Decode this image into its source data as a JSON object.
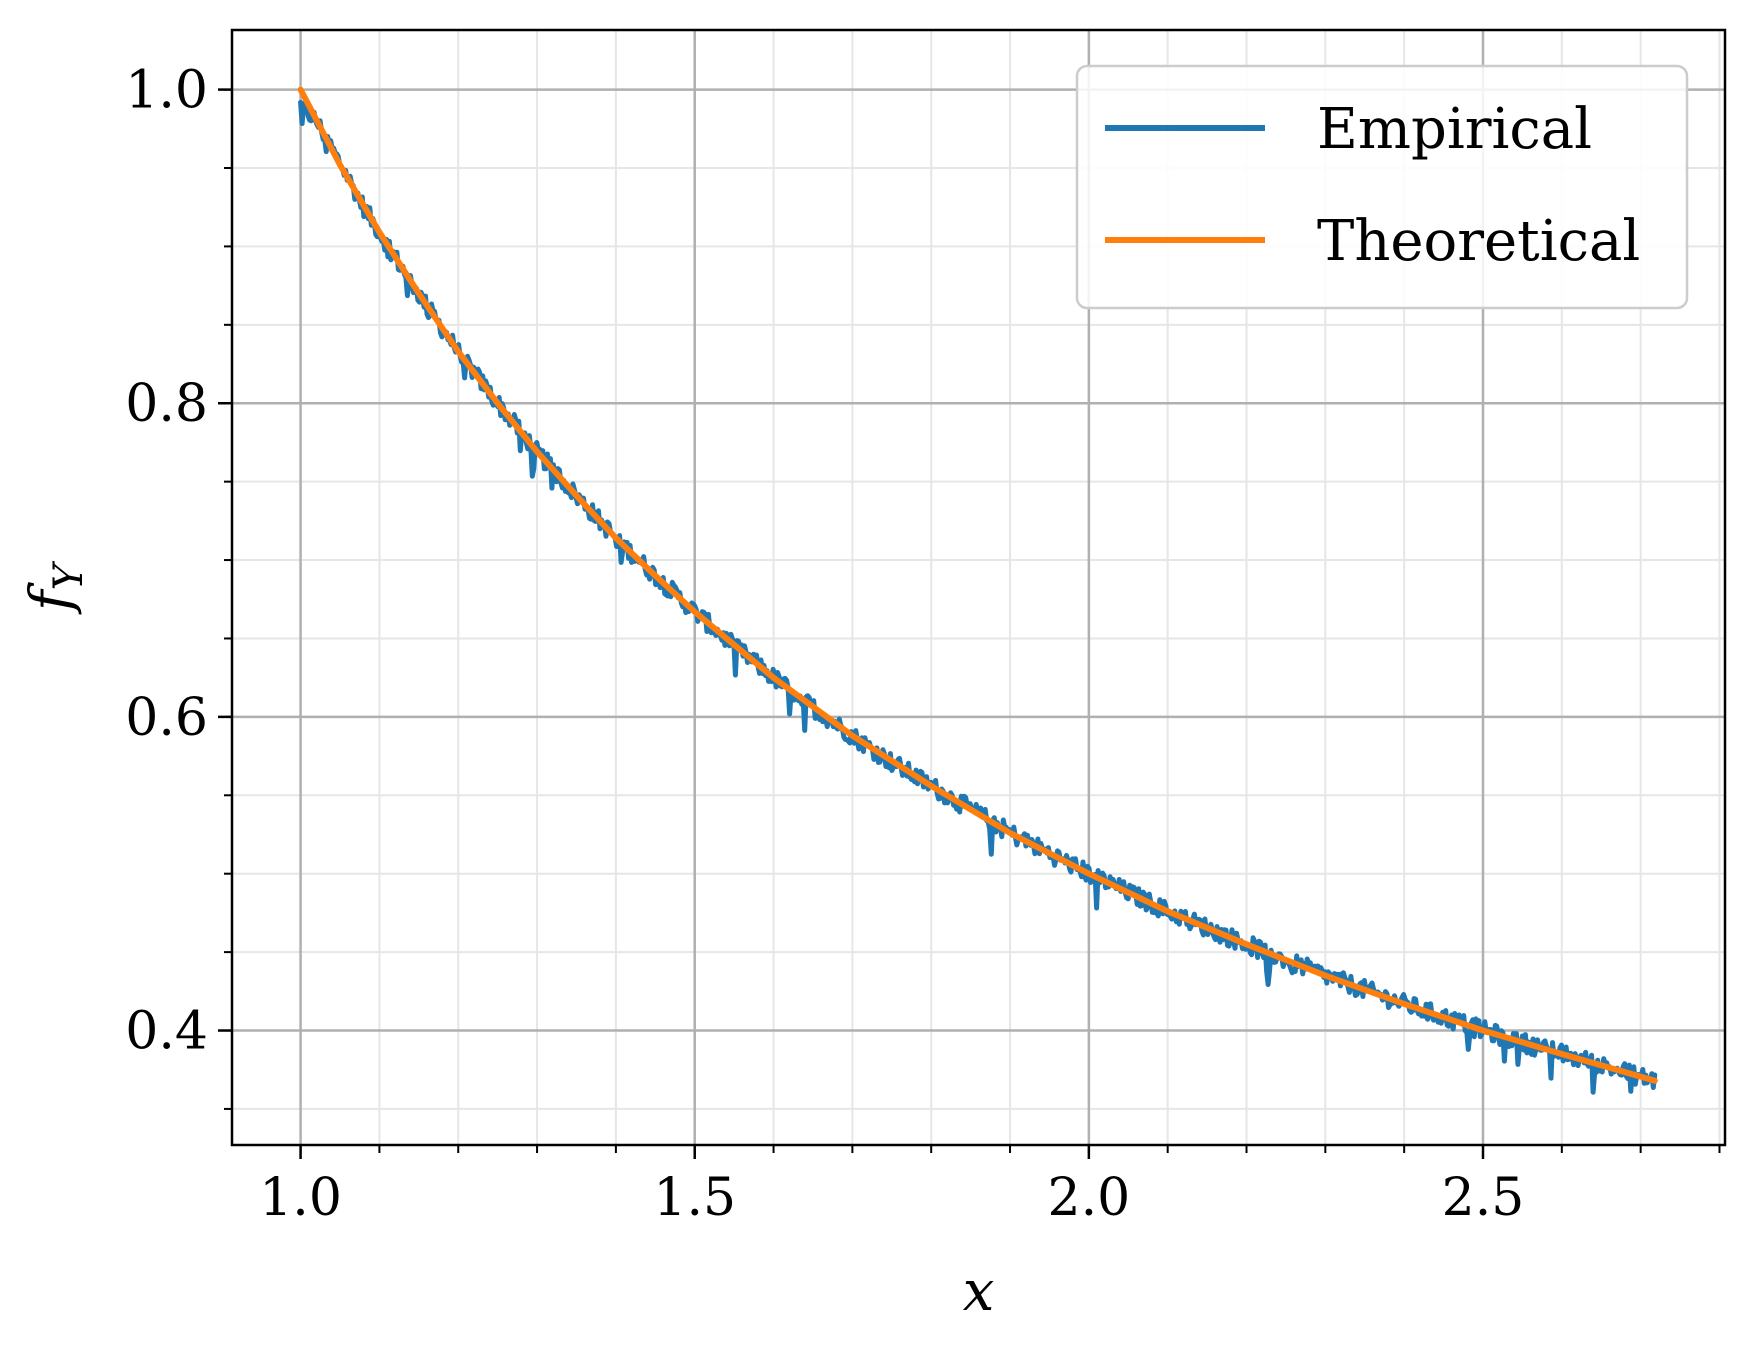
{
  "chart_data": {
    "type": "line",
    "title": "",
    "xlabel": "x",
    "ylabel": "f",
    "ylabel_subscript": "Y",
    "xlim": [
      0.913,
      2.807
    ],
    "ylim": [
      0.327,
      1.038
    ],
    "xticks": [
      1.0,
      1.5,
      2.0,
      2.5
    ],
    "xtick_labels": [
      "1.0",
      "1.5",
      "2.0",
      "2.5"
    ],
    "yticks": [
      0.4,
      0.6,
      0.8,
      1.0
    ],
    "ytick_labels": [
      "0.4",
      "0.6",
      "0.8",
      "1.0"
    ],
    "x_minor_step": 0.1,
    "y_minor_step": 0.05,
    "grid": true,
    "legend_position": "upper right",
    "series": [
      {
        "name": "Empirical",
        "color": "#1f77b4",
        "style": "noisy",
        "x": [
          1.0,
          1.02,
          1.04,
          1.06,
          1.08,
          1.1,
          1.13,
          1.16,
          1.2,
          1.25,
          1.3,
          1.35,
          1.4,
          1.45,
          1.5,
          1.55,
          1.6,
          1.65,
          1.7,
          1.75,
          1.8,
          1.85,
          1.9,
          1.95,
          2.0,
          2.1,
          2.2,
          2.3,
          2.4,
          2.5,
          2.6,
          2.718
        ],
        "values": [
          0.99,
          0.98,
          0.962,
          0.944,
          0.925,
          0.909,
          0.885,
          0.862,
          0.833,
          0.8,
          0.769,
          0.741,
          0.714,
          0.69,
          0.667,
          0.645,
          0.625,
          0.606,
          0.588,
          0.571,
          0.556,
          0.541,
          0.526,
          0.513,
          0.5,
          0.476,
          0.455,
          0.435,
          0.417,
          0.4,
          0.385,
          0.368
        ]
      },
      {
        "name": "Theoretical",
        "color": "#ff7f0e",
        "style": "smooth",
        "x": [
          1.0,
          1.05,
          1.1,
          1.15,
          1.2,
          1.25,
          1.3,
          1.35,
          1.4,
          1.45,
          1.5,
          1.6,
          1.7,
          1.8,
          1.9,
          2.0,
          2.1,
          2.2,
          2.3,
          2.4,
          2.5,
          2.6,
          2.718
        ],
        "values": [
          1.0,
          0.952,
          0.909,
          0.87,
          0.833,
          0.8,
          0.769,
          0.741,
          0.714,
          0.69,
          0.667,
          0.625,
          0.588,
          0.556,
          0.526,
          0.5,
          0.476,
          0.455,
          0.435,
          0.417,
          0.4,
          0.385,
          0.368
        ]
      }
    ]
  }
}
